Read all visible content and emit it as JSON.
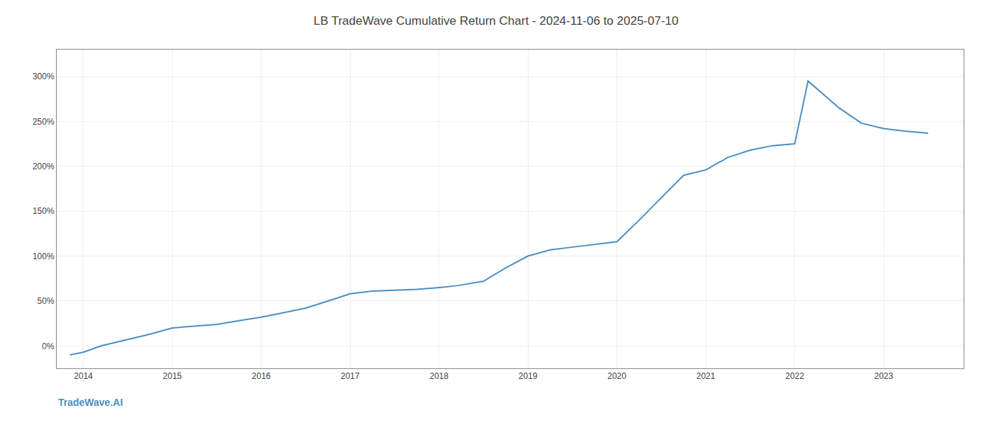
{
  "chart_data": {
    "type": "line",
    "title": "LB TradeWave Cumulative Return Chart - 2024-11-06 to 2025-07-10",
    "x": [
      2013.85,
      2014.0,
      2014.2,
      2014.5,
      2014.75,
      2015.0,
      2015.25,
      2015.5,
      2015.75,
      2016.0,
      2016.25,
      2016.5,
      2016.75,
      2017.0,
      2017.25,
      2017.5,
      2017.75,
      2018.0,
      2018.2,
      2018.5,
      2018.75,
      2019.0,
      2019.25,
      2019.5,
      2019.75,
      2020.0,
      2020.25,
      2020.5,
      2020.75,
      2021.0,
      2021.25,
      2021.5,
      2021.75,
      2022.0,
      2022.15,
      2022.5,
      2022.75,
      2023.0,
      2023.25,
      2023.5
    ],
    "values": [
      -0.1,
      -0.07,
      0.0,
      0.07,
      0.13,
      0.2,
      0.22,
      0.24,
      0.28,
      0.32,
      0.37,
      0.42,
      0.5,
      0.58,
      0.61,
      0.62,
      0.63,
      0.65,
      0.67,
      0.72,
      0.87,
      1.0,
      1.07,
      1.1,
      1.13,
      1.16,
      1.4,
      1.65,
      1.9,
      1.96,
      2.1,
      2.18,
      2.23,
      2.25,
      2.95,
      2.65,
      2.48,
      2.42,
      2.39,
      2.37
    ],
    "color": "#4a8fc4",
    "xlim": [
      2013.7,
      2023.9
    ],
    "ylim": [
      -0.25,
      3.3
    ],
    "xticks": [
      2014,
      2015,
      2016,
      2017,
      2018,
      2019,
      2020,
      2021,
      2022,
      2023
    ],
    "yticks": [
      {
        "value": 0.0,
        "label": "0%"
      },
      {
        "value": 0.5,
        "label": "50%"
      },
      {
        "value": 1.0,
        "label": "100%"
      },
      {
        "value": 1.5,
        "label": "150%"
      },
      {
        "value": 2.0,
        "label": "200%"
      },
      {
        "value": 2.5,
        "label": "250%"
      },
      {
        "value": 3.0,
        "label": "300%"
      }
    ],
    "grid": true,
    "annotations": [
      "TradeWave.AI"
    ]
  }
}
